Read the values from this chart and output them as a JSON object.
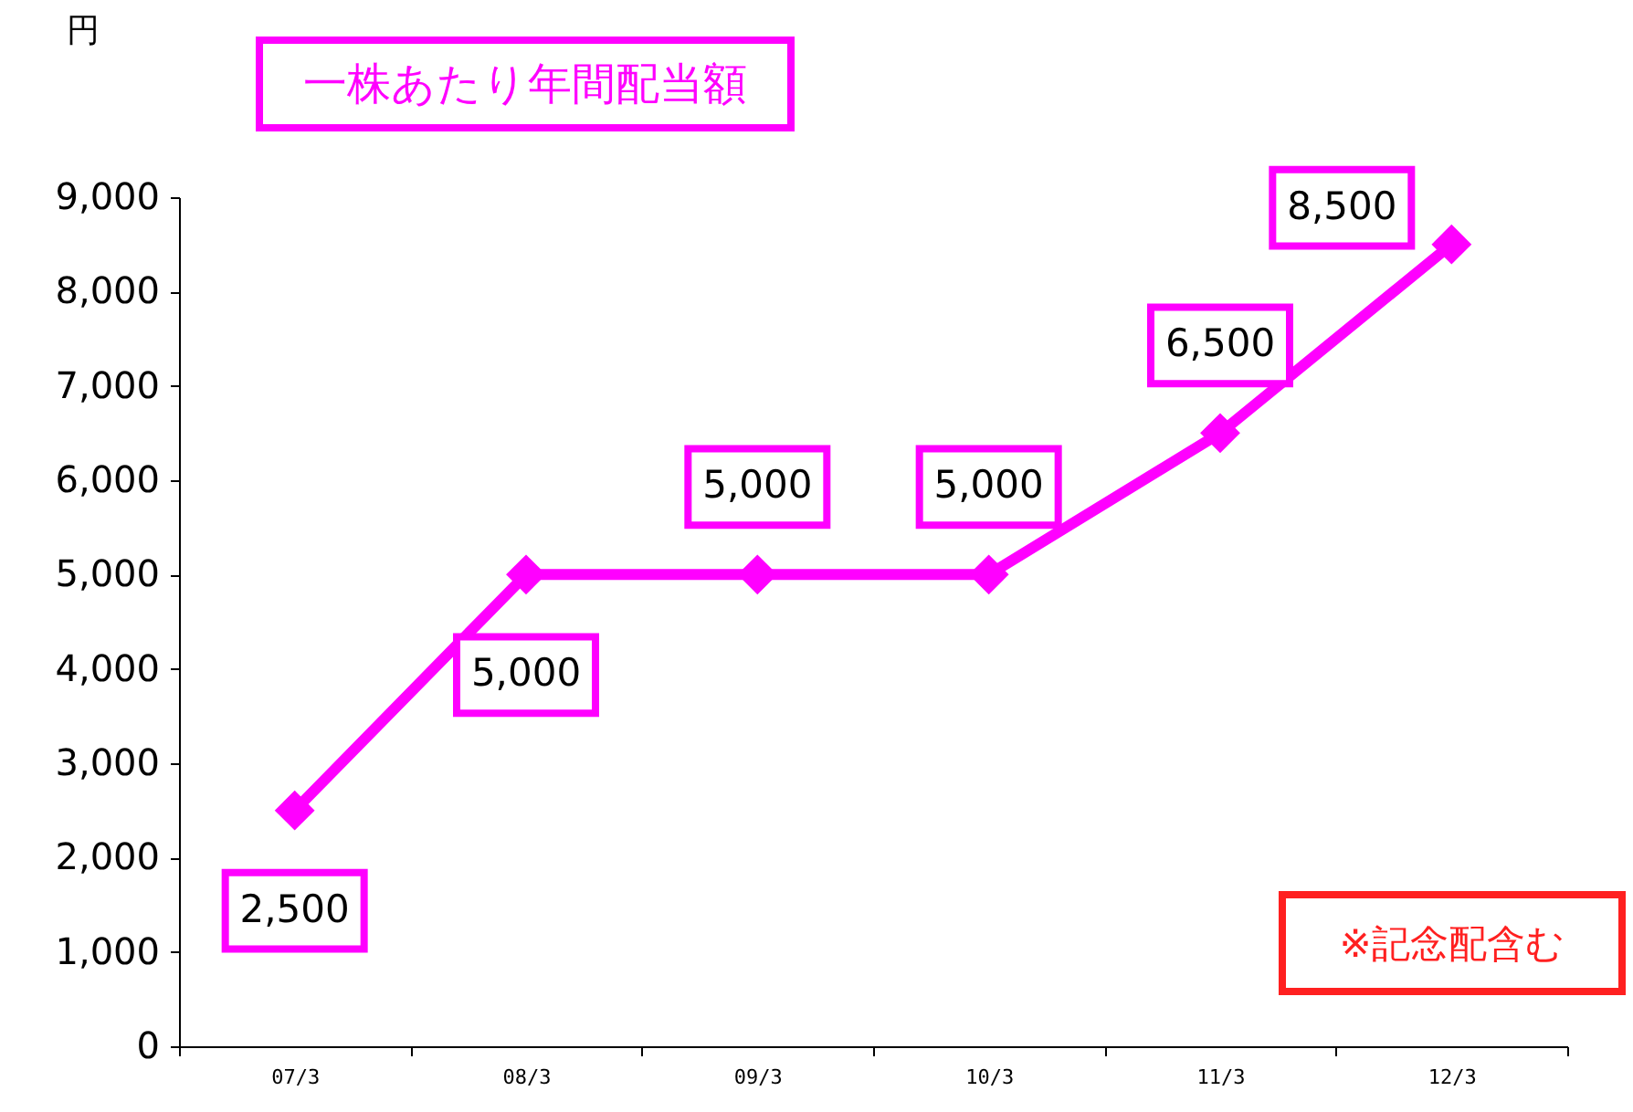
{
  "chart_data": {
    "type": "line",
    "title": "一株あたり年間配当額",
    "ylabel": "円",
    "categories": [
      "07/3",
      "08/3",
      "09/3",
      "10/3",
      "11/3",
      "12/3"
    ],
    "series": [
      {
        "color": "#ff00ff",
        "values": [
          2500,
          5000,
          5000,
          5000,
          6500,
          8500
        ],
        "value_labels": [
          "2,500",
          "5,000",
          "5,000",
          "5,000",
          "6,500",
          "8,500"
        ]
      }
    ],
    "ylim": [
      0,
      9000
    ],
    "yticks": [
      0,
      {
        "value": 1000,
        "label": "1,000"
      },
      {
        "value": 2000,
        "label": "2,000"
      },
      {
        "value": 3000,
        "label": "3,000"
      },
      {
        "value": 4000,
        "label": "4,000"
      },
      {
        "value": 5000,
        "label": "5,000"
      },
      {
        "value": 6000,
        "label": "6,000"
      },
      {
        "value": 7000,
        "label": "7,000"
      },
      {
        "value": 8000,
        "label": "8,000"
      },
      {
        "value": 9000,
        "label": "9,000"
      }
    ],
    "marker": "diamond",
    "grid": false,
    "annotations": [
      "※記念配含む"
    ]
  }
}
